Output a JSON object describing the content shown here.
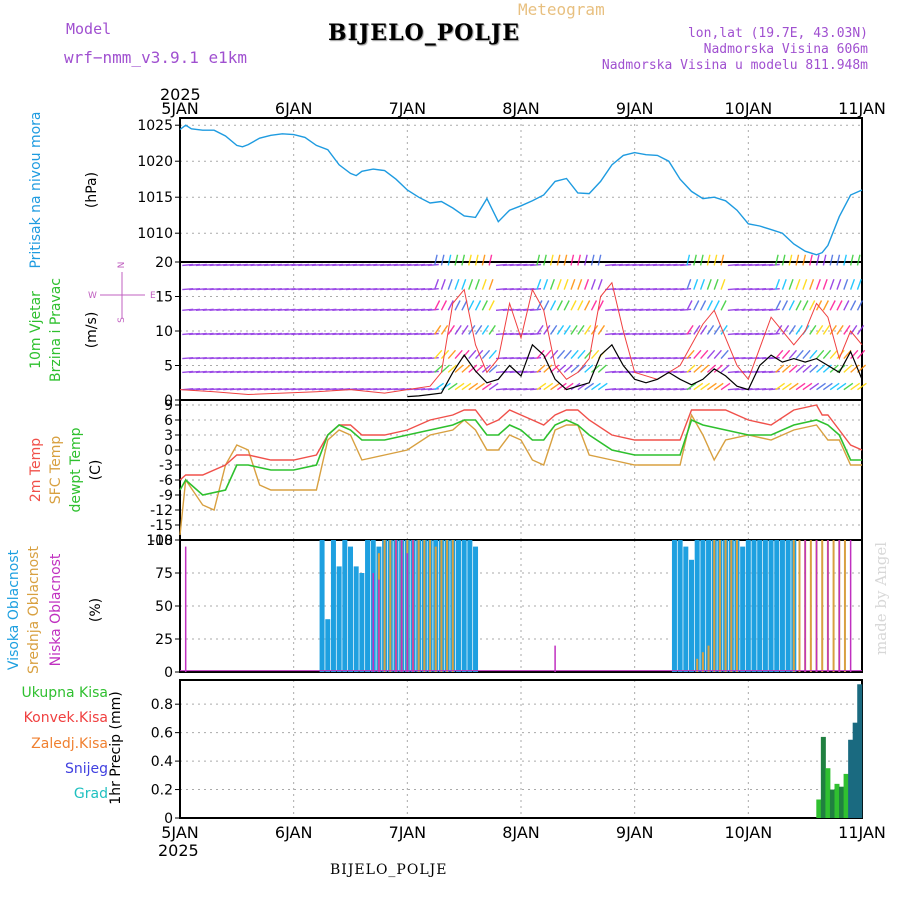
{
  "header": {
    "model_label": "Model",
    "model_name": "wrf−nmm_v3.9.1  e1km",
    "station_title": "BIJELO_POLJE",
    "meteogram_label": "Meteogram",
    "lonlat": "lon,lat (19.7E, 43.03N)",
    "elevation": "Nadmorska Visina 606m",
    "model_elevation": "Nadmorska Visina u modelu 811.948m",
    "footer_title": "BIJELO_POLJE",
    "watermark": "made by Angel"
  },
  "colors": {
    "pressure": "#1e9be0",
    "temp2m": "#f0504a",
    "sfc_temp": "#d8a040",
    "dewpoint": "#2ec02e",
    "high_cloud": "#1ea0e0",
    "mid_cloud": "#d8a040",
    "low_cloud": "#c030c0",
    "total_precip": "#30c030",
    "conv_precip": "#f04040",
    "freezing_rain": "#f08030",
    "snow": "#4040e0",
    "graupel": "#20c0c0",
    "wind_speed": "#000000",
    "wind_gust": "#f04040",
    "title_purple": "#a050d0",
    "meteogram_orange": "#e8c080"
  },
  "chart_data": [
    {
      "type": "line",
      "panel": "pressure",
      "ylabel_left": "Pritisak na nivou mora",
      "ylabel_unit": "(hPa)",
      "ylim": [
        1006,
        1026
      ],
      "yticks": [
        1010,
        1015,
        1020,
        1025
      ],
      "x_top_year": "2025",
      "x_bottom_year": "2025",
      "x_ticks": [
        "5JAN",
        "6JAN",
        "7JAN",
        "8JAN",
        "9JAN",
        "10JAN",
        "11JAN"
      ],
      "xlim_days": [
        5,
        11
      ],
      "grid": true,
      "series": [
        {
          "x": [
            5.0,
            5.05,
            5.1,
            5.2,
            5.3,
            5.4,
            5.5,
            5.55,
            5.6,
            5.7,
            5.8,
            5.9,
            6.0,
            6.1,
            6.2,
            6.3,
            6.4,
            6.5,
            6.55,
            6.6,
            6.7,
            6.8,
            6.9,
            7.0,
            7.1,
            7.2,
            7.3,
            7.4,
            7.5,
            7.6,
            7.7,
            7.8,
            7.9,
            8.0,
            8.1,
            8.2,
            8.3,
            8.4,
            8.5,
            8.6,
            8.7,
            8.8,
            8.9,
            9.0,
            9.1,
            9.2,
            9.3,
            9.4,
            9.5,
            9.6,
            9.7,
            9.8,
            9.9,
            10.0,
            10.1,
            10.2,
            10.3,
            10.4,
            10.5,
            10.6,
            10.65,
            10.7,
            10.8,
            10.9,
            11.0
          ],
          "y": [
            1024.4,
            1025.0,
            1024.5,
            1024.3,
            1024.3,
            1023.5,
            1022.2,
            1022.0,
            1022.3,
            1023.2,
            1023.6,
            1023.8,
            1023.7,
            1023.3,
            1022.2,
            1021.6,
            1019.5,
            1018.3,
            1018.0,
            1018.6,
            1018.9,
            1018.7,
            1017.5,
            1016.0,
            1015.0,
            1014.2,
            1014.4,
            1013.5,
            1012.4,
            1012.2,
            1014.8,
            1011.6,
            1013.2,
            1013.8,
            1014.5,
            1015.3,
            1017.2,
            1017.6,
            1015.6,
            1015.5,
            1017.2,
            1019.5,
            1020.8,
            1021.2,
            1020.9,
            1020.8,
            1020.0,
            1017.5,
            1015.8,
            1014.8,
            1015.0,
            1014.5,
            1013.2,
            1011.3,
            1011.0,
            1010.5,
            1010.0,
            1008.5,
            1007.5,
            1007.0,
            1007.3,
            1008.3,
            1012.3,
            1015.3,
            1016.0
          ]
        }
      ]
    },
    {
      "type": "line",
      "panel": "wind",
      "ylabel_left": "10m Vjetar",
      "ylabel_left2": "Brzina i Pravac",
      "ylabel_unit": "(m/s)",
      "compass": {
        "n": "N",
        "w": "W",
        "e": "E",
        "s": "S"
      },
      "ylim": [
        0,
        20
      ],
      "yticks": [
        0,
        5,
        10,
        15,
        20
      ],
      "grid": true,
      "series": [
        {
          "name": "speed",
          "x": [
            7.0,
            7.1,
            7.2,
            7.3,
            7.4,
            7.5,
            7.6,
            7.7,
            7.8,
            7.9,
            8.0,
            8.1,
            8.2,
            8.3,
            8.4,
            8.5,
            8.6,
            8.7,
            8.8,
            8.9,
            9.0,
            9.1,
            9.2,
            9.3,
            9.4,
            9.5,
            9.6,
            9.7,
            9.8,
            9.9,
            10.0,
            10.1,
            10.2,
            10.3,
            10.4,
            10.5,
            10.6,
            10.7,
            10.8,
            10.9,
            11.0
          ],
          "y": [
            0.5,
            0.6,
            0.8,
            1.0,
            4.0,
            6.5,
            4.2,
            2.5,
            3.0,
            5.0,
            3.5,
            8.0,
            6.5,
            3.0,
            1.5,
            2.0,
            2.5,
            6.5,
            8.0,
            5.0,
            3.0,
            2.5,
            3.0,
            4.0,
            3.0,
            2.2,
            3.0,
            4.5,
            3.5,
            2.0,
            1.5,
            5.0,
            6.5,
            5.5,
            6.0,
            5.5,
            6.0,
            5.0,
            4.0,
            7.0,
            3.0
          ]
        },
        {
          "name": "gust",
          "x": [
            5.0,
            5.3,
            5.6,
            5.9,
            6.2,
            6.5,
            6.8,
            7.0,
            7.2,
            7.3,
            7.4,
            7.5,
            7.6,
            7.7,
            7.8,
            7.9,
            8.0,
            8.1,
            8.2,
            8.3,
            8.4,
            8.5,
            8.6,
            8.7,
            8.8,
            8.9,
            9.0,
            9.2,
            9.4,
            9.6,
            9.7,
            9.8,
            9.9,
            10.0,
            10.2,
            10.4,
            10.5,
            10.6,
            10.7,
            10.8,
            10.9,
            11.0
          ],
          "y": [
            1.5,
            1.2,
            0.8,
            1.0,
            1.2,
            1.5,
            1.0,
            1.5,
            2.0,
            4.0,
            14.0,
            16.0,
            8.0,
            4.0,
            6.0,
            14.0,
            9.0,
            16.0,
            13.0,
            5.0,
            3.0,
            4.0,
            6.0,
            15.0,
            17.0,
            10.0,
            4.0,
            3.0,
            5.0,
            11.0,
            13.0,
            9.0,
            5.0,
            3.0,
            12.0,
            8.0,
            10.0,
            14.0,
            12.0,
            6.0,
            10.0,
            8.0
          ]
        }
      ]
    },
    {
      "type": "line",
      "panel": "temperature",
      "ylabels_left": [
        "2m Temp",
        "SFC Temp",
        "dewpt Temp"
      ],
      "ylabel_unit": "(C)",
      "ylim": [
        -18,
        10
      ],
      "yticks": [
        -18,
        -15,
        -12,
        -9,
        -6,
        -3,
        0,
        3,
        6,
        9
      ],
      "grid": true,
      "series": [
        {
          "name": "2m Temp",
          "x": [
            5.0,
            5.05,
            5.2,
            5.4,
            5.5,
            5.6,
            5.8,
            6.0,
            6.2,
            6.3,
            6.4,
            6.5,
            6.6,
            6.8,
            7.0,
            7.2,
            7.4,
            7.5,
            7.6,
            7.7,
            7.8,
            7.9,
            8.0,
            8.1,
            8.2,
            8.3,
            8.4,
            8.5,
            8.6,
            8.8,
            9.0,
            9.2,
            9.4,
            9.5,
            9.6,
            9.8,
            10.0,
            10.2,
            10.4,
            10.6,
            10.65,
            10.7,
            10.8,
            10.9,
            11.0
          ],
          "y": [
            -6,
            -5,
            -5,
            -3,
            -1,
            -1,
            -2,
            -2,
            -1,
            3,
            5,
            5,
            3,
            3,
            4,
            6,
            7,
            8,
            8,
            5,
            6,
            8,
            7,
            6,
            5,
            7,
            8,
            8,
            6,
            3,
            2,
            2,
            2,
            8,
            8,
            8,
            6,
            5,
            8,
            9,
            7,
            7,
            4,
            1,
            0
          ]
        },
        {
          "name": "SFC Temp",
          "x": [
            5.0,
            5.05,
            5.2,
            5.3,
            5.4,
            5.5,
            5.6,
            5.7,
            5.8,
            6.0,
            6.2,
            6.3,
            6.4,
            6.5,
            6.6,
            6.8,
            7.0,
            7.2,
            7.4,
            7.5,
            7.6,
            7.7,
            7.8,
            7.9,
            8.0,
            8.1,
            8.2,
            8.3,
            8.4,
            8.5,
            8.6,
            8.8,
            9.0,
            9.2,
            9.4,
            9.5,
            9.6,
            9.7,
            9.8,
            10.0,
            10.2,
            10.4,
            10.6,
            10.7,
            10.8,
            10.9,
            11.0
          ],
          "y": [
            -17,
            -6,
            -11,
            -12,
            -3,
            1,
            0,
            -7,
            -8,
            -8,
            -8,
            2,
            4,
            3,
            -2,
            -1,
            0,
            3,
            4,
            6,
            4,
            0,
            0,
            3,
            2,
            -2,
            -3,
            4,
            5,
            5,
            -1,
            -2,
            -3,
            -3,
            -3,
            7,
            3,
            -2,
            2,
            3,
            2,
            4,
            5,
            2,
            2,
            -3,
            -3
          ]
        },
        {
          "name": "dewpt Temp",
          "x": [
            5.0,
            5.05,
            5.2,
            5.4,
            5.5,
            5.6,
            5.8,
            6.0,
            6.2,
            6.3,
            6.4,
            6.5,
            6.6,
            6.8,
            7.0,
            7.2,
            7.4,
            7.5,
            7.6,
            7.7,
            7.8,
            7.9,
            8.0,
            8.1,
            8.2,
            8.3,
            8.4,
            8.5,
            8.6,
            8.8,
            9.0,
            9.2,
            9.4,
            9.5,
            9.6,
            9.8,
            10.0,
            10.2,
            10.4,
            10.6,
            10.7,
            10.8,
            10.9,
            11.0
          ],
          "y": [
            -8,
            -6,
            -9,
            -8,
            -3,
            -3,
            -4,
            -4,
            -3,
            3,
            5,
            4,
            2,
            2,
            3,
            4,
            5,
            6,
            6,
            3,
            3,
            5,
            4,
            2,
            2,
            5,
            6,
            5,
            3,
            0,
            -1,
            -1,
            -1,
            6,
            5,
            4,
            3,
            3,
            5,
            6,
            5,
            3,
            -2,
            -2
          ]
        }
      ]
    },
    {
      "type": "bar",
      "panel": "cloud_cover",
      "ylabels_left": [
        "Visoka Oblacnost",
        "Srednja Oblacnost",
        "Niska Oblacnost"
      ],
      "ylabel_unit": "(%)",
      "ylim": [
        0,
        100
      ],
      "yticks": [
        0,
        25,
        50,
        75,
        100
      ],
      "grid": true,
      "series": [
        {
          "name": "Visoka Oblacnost",
          "x": [
            6.25,
            6.3,
            6.35,
            6.4,
            6.45,
            6.5,
            6.55,
            6.6,
            6.65,
            6.7,
            6.75,
            6.8,
            6.85,
            6.9,
            6.95,
            7.0,
            7.05,
            7.1,
            7.15,
            7.2,
            7.25,
            7.3,
            7.35,
            7.4,
            7.45,
            7.5,
            7.55,
            7.6,
            9.35,
            9.4,
            9.45,
            9.5,
            9.55,
            9.6,
            9.65,
            9.7,
            9.75,
            9.8,
            9.85,
            9.9,
            9.95,
            10.0,
            10.05,
            10.1,
            10.15,
            10.2,
            10.25,
            10.3,
            10.35,
            10.4
          ],
          "y": [
            100,
            40,
            100,
            80,
            100,
            95,
            80,
            75,
            100,
            100,
            95,
            100,
            100,
            100,
            100,
            100,
            100,
            100,
            100,
            100,
            100,
            100,
            100,
            100,
            100,
            100,
            100,
            95,
            100,
            100,
            95,
            85,
            100,
            100,
            100,
            100,
            100,
            100,
            100,
            100,
            95,
            100,
            100,
            100,
            100,
            100,
            100,
            100,
            100,
            100
          ]
        },
        {
          "name": "Srednja Oblacnost",
          "x": [
            6.75,
            6.8,
            6.85,
            6.9,
            6.95,
            7.0,
            7.05,
            7.1,
            7.15,
            7.2,
            7.25,
            7.3,
            7.35,
            7.4,
            9.55,
            9.6,
            9.65,
            9.7,
            9.75,
            9.8,
            9.85,
            9.9,
            10.4,
            10.45,
            10.5,
            10.55,
            10.6,
            10.65,
            10.7,
            10.75,
            10.8,
            10.85
          ],
          "y": [
            90,
            100,
            100,
            100,
            100,
            100,
            100,
            100,
            100,
            100,
            95,
            100,
            100,
            100,
            10,
            15,
            20,
            100,
            100,
            100,
            100,
            100,
            100,
            100,
            100,
            100,
            100,
            100,
            100,
            100,
            100,
            100
          ]
        },
        {
          "name": "Niska Oblacnost",
          "x": [
            5.05,
            6.7,
            6.75,
            6.9,
            6.95,
            7.0,
            7.05,
            8.3,
            10.5,
            10.6,
            10.7,
            10.8,
            10.9
          ],
          "y": [
            95,
            75,
            70,
            100,
            100,
            90,
            100,
            20,
            100,
            100,
            100,
            100,
            100
          ]
        }
      ]
    },
    {
      "type": "bar",
      "panel": "precip",
      "ylabels_left": [
        "Ukupna Kisa",
        "Konvek.Kisa",
        "Zaledj.Kisa",
        "Snijeg",
        "Grad"
      ],
      "ylabel_unit": "1hr Precip (mm)",
      "ylim": [
        0,
        0.97
      ],
      "yticks": [
        0,
        0.2,
        0.4,
        0.6,
        0.8
      ],
      "grid": true,
      "series": [
        {
          "name": "Ukupna Kisa",
          "x": [
            10.62,
            10.66,
            10.7,
            10.74,
            10.78,
            10.82,
            10.86,
            10.9,
            10.94,
            10.98
          ],
          "y": [
            0.13,
            0.57,
            0.35,
            0.2,
            0.24,
            0.22,
            0.31,
            0.55,
            0.67,
            0.94
          ]
        }
      ]
    }
  ]
}
